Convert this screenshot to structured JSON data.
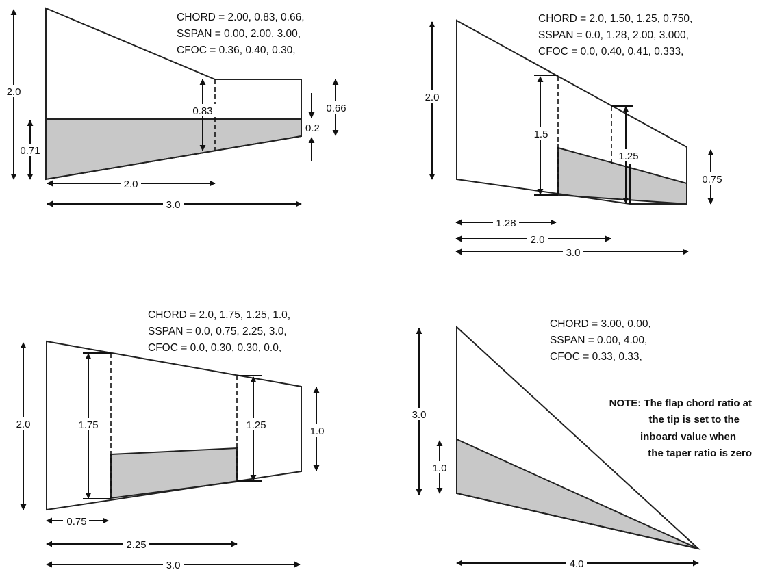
{
  "panels": [
    {
      "id": "p1",
      "params": [
        "CHORD = 2.00, 0.83, 0.66,",
        "SSPAN  = 0.00, 2.00, 3.00,",
        "CFOC   = 0.36, 0.40, 0.30,"
      ],
      "dims": {
        "root_chord": "2.0",
        "flap_root": "0.71",
        "mid_chord": "0.83",
        "tip_chord": "0.66",
        "tip_flap": "0.2",
        "span_mid": "2.0",
        "span_total": "3.0"
      }
    },
    {
      "id": "p2",
      "params": [
        "CHORD = 2.0, 1.50, 1.25, 0.750,",
        "SSPAN  = 0.0, 1.28, 2.00, 3.000,",
        "CFOC    = 0.0, 0.40, 0.41, 0.333,"
      ],
      "dims": {
        "root_chord": "2.0",
        "chord_a": "1.5",
        "chord_b": "1.25",
        "tip_chord": "0.75",
        "span_a": "1.28",
        "span_b": "2.0",
        "span_total": "3.0"
      }
    },
    {
      "id": "p3",
      "params": [
        "CHORD = 2.0, 1.75, 1.25, 1.0,",
        "SSPAN  = 0.0, 0.75, 2.25, 3.0,",
        "CFOC    = 0.0, 0.30, 0.30, 0.0,"
      ],
      "dims": {
        "root_chord": "2.0",
        "chord_a": "1.75",
        "chord_b": "1.25",
        "tip_chord": "1.0",
        "span_a": "0.75",
        "span_b": "2.25",
        "span_total": "3.0"
      }
    },
    {
      "id": "p4",
      "params": [
        "CHORD = 3.00, 0.00,",
        "SSPAN  = 0.00, 4.00,",
        "CFOC    = 0.33, 0.33,"
      ],
      "dims": {
        "root_chord": "3.0",
        "flap_root": "1.0",
        "span_total": "4.0"
      },
      "note": [
        "NOTE: The flap chord ratio at",
        "the tip is set to the",
        "inboard value when",
        "the taper ratio is zero"
      ]
    }
  ],
  "colors": {
    "line": "#222222",
    "flap_fill": "#c8c8c8",
    "background": "#ffffff"
  }
}
